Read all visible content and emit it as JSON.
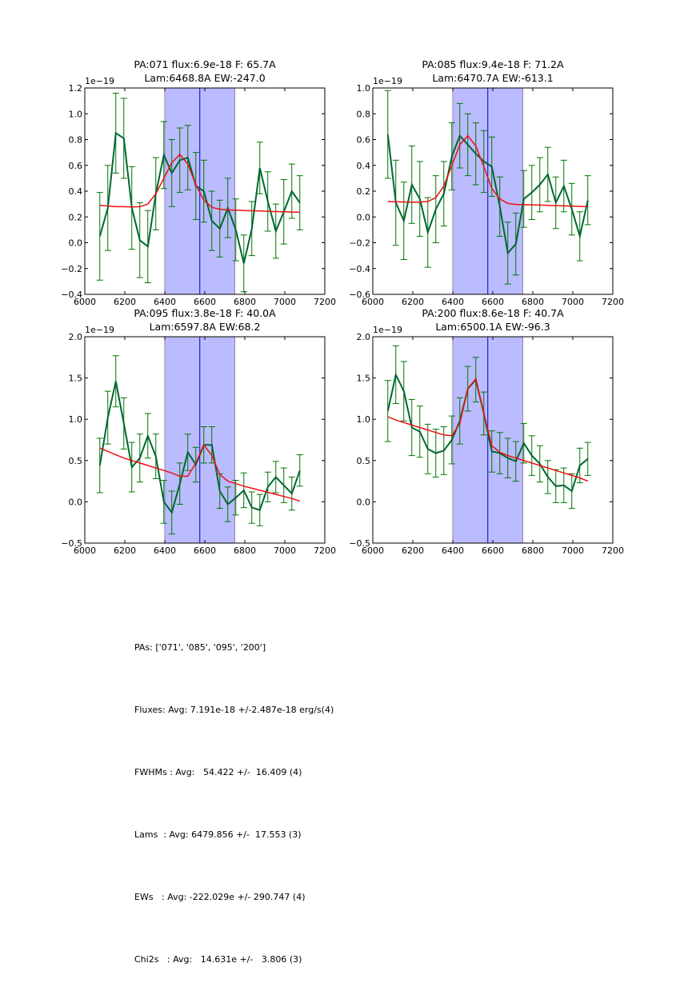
{
  "chart_data": [
    {
      "type": "line",
      "title": [
        "PA:071 flux:6.9e-18 F: 65.7A",
        "Lam:6468.8A EW:-247.0"
      ],
      "offset_label": "1e−19",
      "xlim": [
        6000,
        7200
      ],
      "ylim": [
        -0.4,
        1.2
      ],
      "xticks": [
        6000,
        6200,
        6400,
        6600,
        6800,
        7000,
        7200
      ],
      "yticks": [
        -0.4,
        -0.2,
        0.0,
        0.2,
        0.4,
        0.6,
        0.8,
        1.0,
        1.2
      ],
      "shaded_region": [
        6400,
        6750
      ],
      "vline": 6575,
      "x": [
        6075,
        6115,
        6155,
        6195,
        6235,
        6275,
        6315,
        6355,
        6395,
        6435,
        6475,
        6515,
        6555,
        6595,
        6635,
        6675,
        6715,
        6755,
        6795,
        6835,
        6875,
        6915,
        6955,
        6995,
        7035,
        7075
      ],
      "data": [
        0.05,
        0.27,
        0.85,
        0.81,
        0.27,
        0.02,
        -0.03,
        0.38,
        0.68,
        0.54,
        0.64,
        0.66,
        0.44,
        0.4,
        0.17,
        0.11,
        0.27,
        0.1,
        -0.16,
        0.11,
        0.58,
        0.32,
        0.09,
        0.24,
        0.4,
        0.31
      ],
      "err": [
        0.34,
        0.33,
        0.31,
        0.31,
        0.32,
        0.29,
        0.28,
        0.28,
        0.26,
        0.26,
        0.25,
        0.25,
        0.26,
        0.24,
        0.23,
        0.22,
        0.23,
        0.24,
        0.22,
        0.21,
        0.2,
        0.23,
        0.21,
        0.25,
        0.21,
        0.21
      ],
      "fit": [
        0.29,
        0.285,
        0.28,
        0.28,
        0.278,
        0.28,
        0.3,
        0.38,
        0.5,
        0.62,
        0.685,
        0.61,
        0.45,
        0.33,
        0.275,
        0.26,
        0.255,
        0.253,
        0.25,
        0.248,
        0.246,
        0.244,
        0.242,
        0.24,
        0.238,
        0.236
      ]
    },
    {
      "type": "line",
      "title": [
        "PA:085 flux:9.4e-18 F: 71.2A",
        "Lam:6470.7A EW:-613.1"
      ],
      "offset_label": "1e−19",
      "xlim": [
        6000,
        7200
      ],
      "ylim": [
        -0.6,
        1.0
      ],
      "xticks": [
        6000,
        6200,
        6400,
        6600,
        6800,
        7000,
        7200
      ],
      "yticks": [
        -0.6,
        -0.4,
        -0.2,
        0.0,
        0.2,
        0.4,
        0.6,
        0.8,
        1.0
      ],
      "shaded_region": [
        6400,
        6750
      ],
      "vline": 6575,
      "x": [
        6075,
        6115,
        6155,
        6195,
        6235,
        6275,
        6315,
        6355,
        6395,
        6435,
        6475,
        6515,
        6555,
        6595,
        6635,
        6675,
        6715,
        6755,
        6795,
        6835,
        6875,
        6915,
        6955,
        6995,
        7035,
        7075
      ],
      "data": [
        0.64,
        0.11,
        -0.03,
        0.25,
        0.14,
        -0.12,
        0.06,
        0.18,
        0.47,
        0.63,
        0.56,
        0.49,
        0.43,
        0.39,
        0.08,
        -0.28,
        -0.21,
        0.14,
        0.19,
        0.25,
        0.33,
        0.11,
        0.24,
        0.06,
        -0.15,
        0.13
      ],
      "err": [
        0.34,
        0.33,
        0.3,
        0.3,
        0.29,
        0.27,
        0.26,
        0.25,
        0.26,
        0.25,
        0.24,
        0.24,
        0.24,
        0.23,
        0.23,
        0.24,
        0.24,
        0.22,
        0.21,
        0.21,
        0.21,
        0.2,
        0.2,
        0.2,
        0.19,
        0.19
      ],
      "fit": [
        0.12,
        0.118,
        0.116,
        0.115,
        0.115,
        0.12,
        0.15,
        0.24,
        0.4,
        0.56,
        0.63,
        0.55,
        0.39,
        0.22,
        0.14,
        0.105,
        0.097,
        0.095,
        0.094,
        0.092,
        0.09,
        0.088,
        0.086,
        0.084,
        0.082,
        0.08
      ]
    },
    {
      "type": "line",
      "title": [
        "PA:095 flux:3.8e-18 F: 40.0A",
        "Lam:6597.8A EW:68.2"
      ],
      "offset_label": "1e−19",
      "xlim": [
        6000,
        7200
      ],
      "ylim": [
        -0.5,
        2.0
      ],
      "xticks": [
        6000,
        6200,
        6400,
        6600,
        6800,
        7000,
        7200
      ],
      "yticks": [
        -0.5,
        0.0,
        0.5,
        1.0,
        1.5,
        2.0
      ],
      "shaded_region": [
        6400,
        6750
      ],
      "vline": 6575,
      "x": [
        6075,
        6115,
        6155,
        6195,
        6235,
        6275,
        6315,
        6355,
        6395,
        6435,
        6475,
        6515,
        6555,
        6595,
        6635,
        6675,
        6715,
        6755,
        6795,
        6835,
        6875,
        6915,
        6955,
        6995,
        7035,
        7075
      ],
      "data": [
        0.44,
        1.02,
        1.46,
        0.95,
        0.42,
        0.53,
        0.8,
        0.55,
        0.0,
        -0.13,
        0.22,
        0.6,
        0.45,
        0.69,
        0.69,
        0.13,
        -0.03,
        0.05,
        0.14,
        -0.07,
        -0.1,
        0.18,
        0.3,
        0.2,
        0.1,
        0.38
      ],
      "err": [
        0.33,
        0.32,
        0.31,
        0.31,
        0.3,
        0.29,
        0.27,
        0.27,
        0.26,
        0.26,
        0.25,
        0.22,
        0.21,
        0.22,
        0.22,
        0.21,
        0.21,
        0.21,
        0.21,
        0.19,
        0.19,
        0.18,
        0.19,
        0.21,
        0.2,
        0.19
      ],
      "fit": [
        0.65,
        0.61,
        0.57,
        0.53,
        0.5,
        0.47,
        0.44,
        0.41,
        0.38,
        0.35,
        0.31,
        0.31,
        0.47,
        0.69,
        0.56,
        0.33,
        0.25,
        0.22,
        0.19,
        0.165,
        0.14,
        0.115,
        0.09,
        0.065,
        0.04,
        0.01
      ]
    },
    {
      "type": "line",
      "title": [
        "PA:200 flux:8.6e-18 F: 40.7A",
        "Lam:6500.1A EW:-96.3"
      ],
      "offset_label": "1e−19",
      "xlim": [
        6000,
        7200
      ],
      "ylim": [
        -0.5,
        2.0
      ],
      "xticks": [
        6000,
        6200,
        6400,
        6600,
        6800,
        7000,
        7200
      ],
      "yticks": [
        -0.5,
        0.0,
        0.5,
        1.0,
        1.5,
        2.0
      ],
      "shaded_region": [
        6400,
        6750
      ],
      "vline": 6575,
      "x": [
        6075,
        6115,
        6155,
        6195,
        6235,
        6275,
        6315,
        6355,
        6395,
        6435,
        6475,
        6515,
        6555,
        6595,
        6635,
        6675,
        6715,
        6755,
        6795,
        6835,
        6875,
        6915,
        6955,
        6995,
        7035,
        7075
      ],
      "data": [
        1.1,
        1.54,
        1.34,
        0.9,
        0.85,
        0.64,
        0.59,
        0.62,
        0.75,
        0.98,
        1.37,
        1.48,
        1.07,
        0.61,
        0.59,
        0.53,
        0.49,
        0.71,
        0.56,
        0.46,
        0.3,
        0.19,
        0.2,
        0.13,
        0.44,
        0.52
      ],
      "err": [
        0.37,
        0.35,
        0.36,
        0.34,
        0.31,
        0.3,
        0.29,
        0.29,
        0.29,
        0.28,
        0.27,
        0.27,
        0.26,
        0.25,
        0.25,
        0.24,
        0.24,
        0.24,
        0.24,
        0.22,
        0.2,
        0.2,
        0.21,
        0.21,
        0.21,
        0.2
      ],
      "fit": [
        1.03,
        0.99,
        0.96,
        0.93,
        0.9,
        0.87,
        0.84,
        0.81,
        0.8,
        0.95,
        1.37,
        1.49,
        1.07,
        0.68,
        0.6,
        0.56,
        0.53,
        0.5,
        0.47,
        0.44,
        0.41,
        0.38,
        0.35,
        0.32,
        0.29,
        0.25
      ]
    }
  ],
  "summary": {
    "pas": "PAs: ['071', '085', '095', '200']",
    "fluxes": "Fluxes: Avg: 7.191e-18 +/-2.487e-18 erg/s(4)",
    "fwhms": "FWHMs : Avg:   54.422 +/-  16.409 (4)",
    "lams": "Lams  : Avg: 6479.856 +/-  17.553 (3)",
    "ews": "EWs   : Avg: -222.029e +/- 290.747 (4)",
    "chi2s": "Chi2s   : Avg:   14.631e +/-   3.806 (3)"
  },
  "colors": {
    "data_line": "#006633",
    "errorbar": "#007700",
    "fit_line": "#ee1111",
    "shade": "#bbbbff",
    "shade_edge": "#8888aa",
    "vline": "#0000cc"
  }
}
